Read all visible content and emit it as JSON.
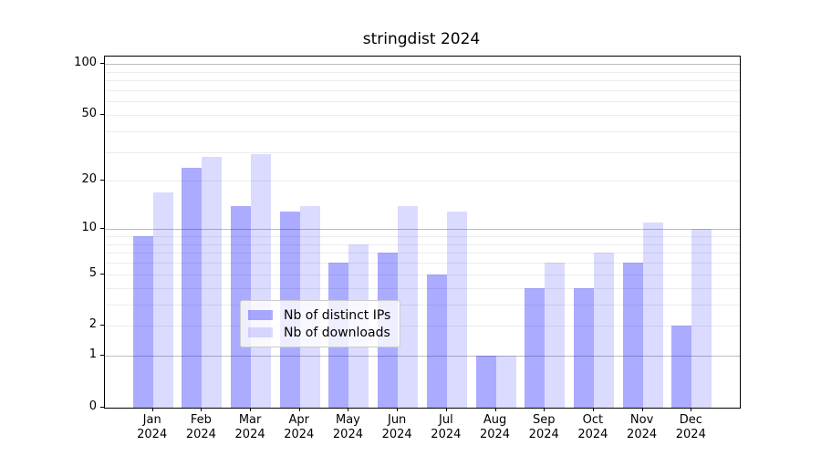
{
  "chart_data": {
    "type": "bar",
    "title": "stringdist 2024",
    "categories": [
      "Jan 2024",
      "Feb 2024",
      "Mar 2024",
      "Apr 2024",
      "May 2024",
      "Jun 2024",
      "Jul 2024",
      "Aug 2024",
      "Sep 2024",
      "Oct 2024",
      "Nov 2024",
      "Dec 2024"
    ],
    "series": [
      {
        "name": "Nb of distinct IPs",
        "color": "rgba(0,0,255,0.33)",
        "values": [
          9,
          24,
          14,
          13,
          6,
          7,
          5,
          1,
          4,
          4,
          6,
          2
        ]
      },
      {
        "name": "Nb of downloads",
        "color": "rgba(0,0,255,0.14)",
        "values": [
          17,
          28,
          29,
          14,
          8,
          14,
          13,
          1,
          6,
          7,
          11,
          10
        ]
      }
    ],
    "y_scale": "log10(value+1)",
    "y_ticks": [
      0,
      1,
      2,
      5,
      10,
      20,
      50,
      100
    ],
    "major_gridlines": [
      1,
      10,
      100
    ],
    "minor_gridlines": [
      2,
      3,
      4,
      5,
      6,
      7,
      8,
      9,
      20,
      30,
      40,
      50,
      60,
      70,
      80,
      90
    ],
    "ylim_top_value": 110,
    "xlabel": "",
    "ylabel": "",
    "grid": true,
    "legend_position": "lower center"
  }
}
